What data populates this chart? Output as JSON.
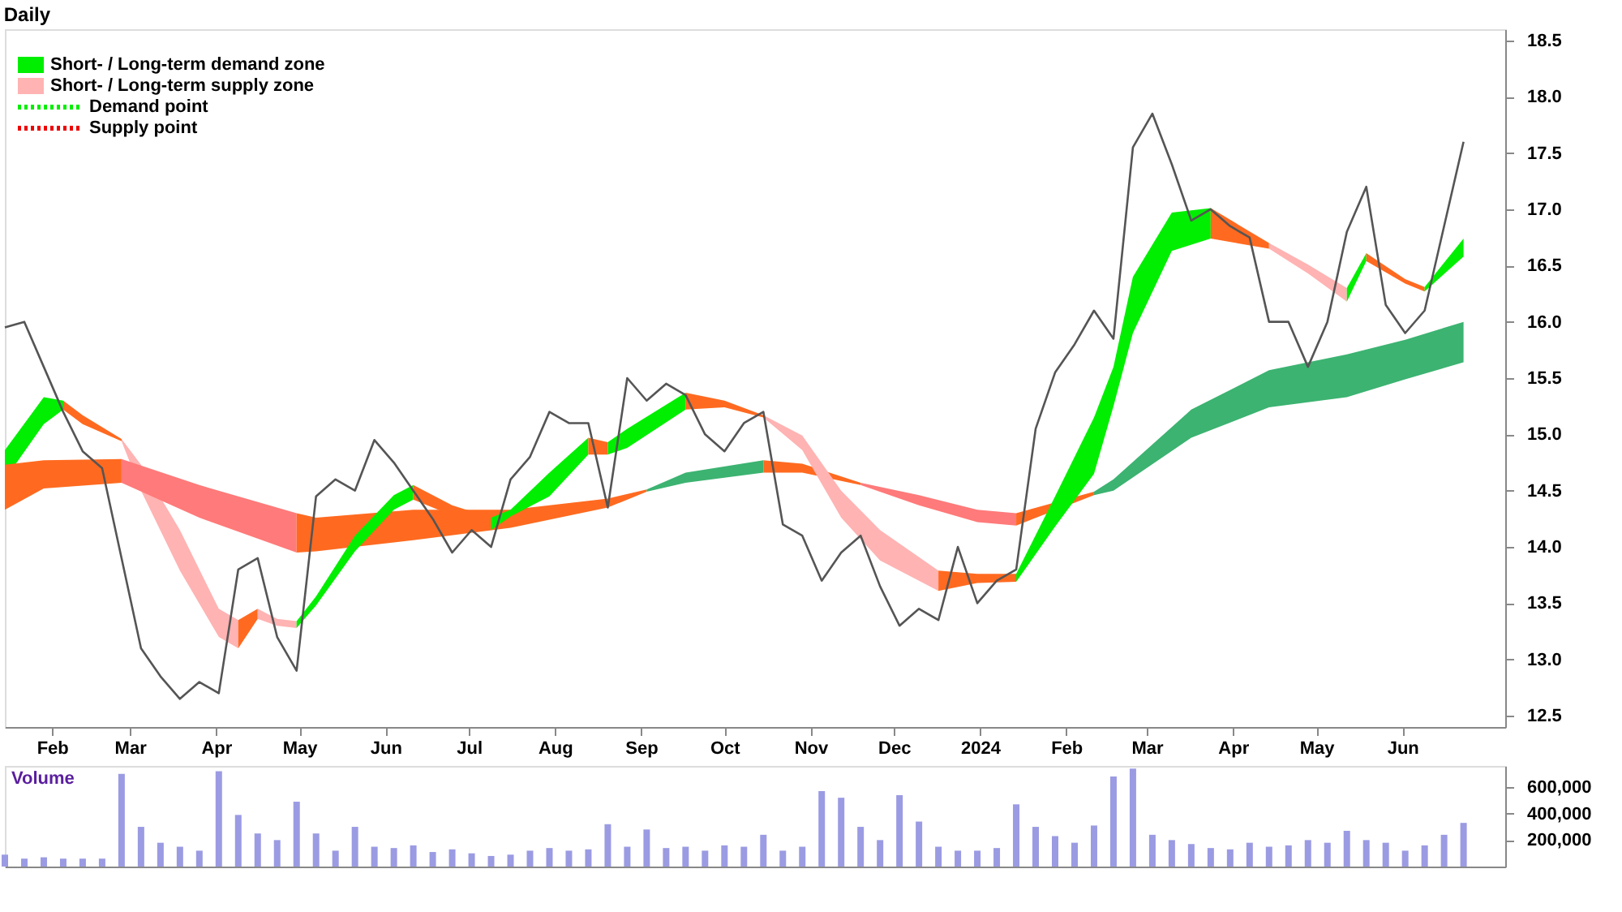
{
  "chart_data": [
    {
      "type": "line",
      "title": "Daily",
      "legend": "top left",
      "grid": false,
      "x": [
        "2023-01-15",
        "2023-01-22",
        "2023-01-29",
        "2023-02-05",
        "2023-02-12",
        "2023-02-19",
        "2023-02-26",
        "2023-03-05",
        "2023-03-12",
        "2023-03-19",
        "2023-03-26",
        "2023-04-02",
        "2023-04-09",
        "2023-04-16",
        "2023-04-23",
        "2023-04-30",
        "2023-05-07",
        "2023-05-14",
        "2023-05-21",
        "2023-05-28",
        "2023-06-04",
        "2023-06-11",
        "2023-06-18",
        "2023-06-25",
        "2023-07-02",
        "2023-07-09",
        "2023-07-16",
        "2023-07-23",
        "2023-07-30",
        "2023-08-06",
        "2023-08-13",
        "2023-08-20",
        "2023-08-27",
        "2023-09-03",
        "2023-09-10",
        "2023-09-17",
        "2023-09-24",
        "2023-10-01",
        "2023-10-08",
        "2023-10-15",
        "2023-10-22",
        "2023-10-29",
        "2023-11-05",
        "2023-11-12",
        "2023-11-19",
        "2023-11-26",
        "2023-12-03",
        "2023-12-10",
        "2023-12-17",
        "2023-12-24",
        "2023-12-31",
        "2024-01-07",
        "2024-01-14",
        "2024-01-21",
        "2024-01-28",
        "2024-02-04",
        "2024-02-11",
        "2024-02-18",
        "2024-02-25",
        "2024-03-03",
        "2024-03-10",
        "2024-03-17",
        "2024-03-24",
        "2024-03-31",
        "2024-04-07",
        "2024-04-14",
        "2024-04-21",
        "2024-04-28",
        "2024-05-05",
        "2024-05-12",
        "2024-05-19",
        "2024-05-26",
        "2024-06-02",
        "2024-06-09",
        "2024-06-16",
        "2024-06-23"
      ],
      "xlim": [
        "2023-01-15",
        "2024-07-08"
      ],
      "xticks": [
        {
          "value": "2023-02-01",
          "label": "Feb"
        },
        {
          "value": "2023-03-01",
          "label": "Mar"
        },
        {
          "value": "2023-04-01",
          "label": "Apr"
        },
        {
          "value": "2023-05-01",
          "label": "May"
        },
        {
          "value": "2023-06-01",
          "label": "Jun"
        },
        {
          "value": "2023-07-01",
          "label": "Jul"
        },
        {
          "value": "2023-08-01",
          "label": "Aug"
        },
        {
          "value": "2023-09-01",
          "label": "Sep"
        },
        {
          "value": "2023-10-01",
          "label": "Oct"
        },
        {
          "value": "2023-11-01",
          "label": "Nov"
        },
        {
          "value": "2023-12-01",
          "label": "Dec"
        },
        {
          "value": "2024-01-01",
          "label": "2024"
        },
        {
          "value": "2024-02-01",
          "label": "Feb"
        },
        {
          "value": "2024-03-01",
          "label": "Mar"
        },
        {
          "value": "2024-04-01",
          "label": "Apr"
        },
        {
          "value": "2024-05-01",
          "label": "May"
        },
        {
          "value": "2024-06-01",
          "label": "Jun"
        }
      ],
      "ylim": [
        12.4,
        18.6
      ],
      "yticks": [
        {
          "value": 12.5,
          "label": "12.5"
        },
        {
          "value": 13,
          "label": "13.0"
        },
        {
          "value": 13.5,
          "label": "13.5"
        },
        {
          "value": 14,
          "label": "14.0"
        },
        {
          "value": 14.5,
          "label": "14.5"
        },
        {
          "value": 15,
          "label": "15.0"
        },
        {
          "value": 15.5,
          "label": "15.5"
        },
        {
          "value": 16,
          "label": "16.0"
        },
        {
          "value": 16.5,
          "label": "16.5"
        },
        {
          "value": 17,
          "label": "17.0"
        },
        {
          "value": 17.5,
          "label": "17.5"
        },
        {
          "value": 18,
          "label": "18.0"
        },
        {
          "value": 18.5,
          "label": "18.5"
        }
      ],
      "series": [
        {
          "type": "line",
          "name": "Short- / Long-term demand zone",
          "color": "#00ee00",
          "x": [
            "2023-01-15",
            "2023-01-29",
            "2023-02-05"
          ],
          "values": [
            null,
            null,
            null
          ],
          "upper": [
            14.86,
            15.33,
            15.3
          ],
          "lower": [
            14.6,
            15.09,
            15.22
          ]
        },
        {
          "type": "line",
          "color": "#ff6a20",
          "x": [
            "2023-01-15",
            "2023-01-29",
            "2023-02-26"
          ],
          "values": [
            null,
            null,
            null
          ],
          "upper": [
            14.73,
            14.77,
            14.78
          ],
          "lower": [
            14.33,
            14.52,
            14.57
          ]
        },
        {
          "type": "line",
          "name": "Short- / Long-term supply zone",
          "color": "#ffb3b3",
          "x": [
            "2023-02-26",
            "2023-03-05",
            "2023-03-19",
            "2023-04-02",
            "2023-04-09"
          ],
          "values": [
            null,
            null,
            null,
            null,
            null
          ],
          "upper": [
            14.96,
            14.73,
            14.15,
            13.45,
            13.35
          ],
          "lower": [
            14.94,
            14.5,
            13.79,
            13.2,
            13.1
          ]
        },
        {
          "type": "line",
          "color": "#ff7a7a",
          "x": [
            "2023-02-26",
            "2023-03-26",
            "2023-04-30"
          ],
          "values": [
            null,
            null,
            null
          ],
          "upper": [
            14.78,
            14.55,
            14.3
          ],
          "lower": [
            14.57,
            14.26,
            13.95
          ]
        },
        {
          "type": "line",
          "color": "#ff6a20",
          "x": [
            "2023-04-30",
            "2023-05-07",
            "2023-06-11",
            "2023-07-16",
            "2023-08-20",
            "2023-09-03"
          ],
          "values": [
            null,
            null,
            null,
            null,
            null,
            null
          ],
          "upper": [
            14.3,
            14.26,
            14.33,
            14.33,
            14.43,
            14.51
          ],
          "lower": [
            13.95,
            13.96,
            14.06,
            14.17,
            14.35,
            14.49
          ]
        },
        {
          "type": "line",
          "color": "#3cb371",
          "x": [
            "2023-09-03",
            "2023-09-17",
            "2023-10-15"
          ],
          "values": [
            null,
            null,
            null
          ],
          "upper": [
            14.51,
            14.66,
            14.77
          ],
          "lower": [
            14.49,
            14.57,
            14.66
          ]
        },
        {
          "type": "line",
          "color": "#ff6a20",
          "x": [
            "2023-10-15",
            "2023-10-29",
            "2023-11-19"
          ],
          "values": [
            null,
            null,
            null
          ],
          "upper": [
            14.77,
            14.74,
            14.57
          ],
          "lower": [
            14.66,
            14.66,
            14.55
          ]
        },
        {
          "type": "line",
          "color": "#ff7a7a",
          "x": [
            "2023-11-19",
            "2023-12-10",
            "2023-12-31",
            "2024-01-14"
          ],
          "values": [
            null,
            null,
            null,
            null
          ],
          "upper": [
            14.57,
            14.46,
            14.33,
            14.3
          ],
          "lower": [
            14.55,
            14.37,
            14.22,
            14.19
          ]
        },
        {
          "type": "line",
          "color": "#ff6a20",
          "x": [
            "2024-01-14",
            "2024-02-11"
          ],
          "values": [
            null,
            null
          ],
          "upper": [
            14.3,
            14.49
          ],
          "lower": [
            14.19,
            14.46
          ]
        },
        {
          "type": "line",
          "color": "#3cb371",
          "x": [
            "2024-02-11",
            "2024-02-18",
            "2024-03-17",
            "2024-04-14",
            "2024-05-12",
            "2024-06-02",
            "2024-06-23"
          ],
          "values": [
            null,
            null,
            null,
            null,
            null,
            null,
            null
          ],
          "upper": [
            14.49,
            14.6,
            15.22,
            15.57,
            15.71,
            15.84,
            16.0
          ],
          "lower": [
            14.46,
            14.5,
            14.97,
            15.24,
            15.33,
            15.49,
            15.64
          ]
        },
        {
          "type": "line",
          "color": "#ff6a20",
          "x": [
            "2023-02-05",
            "2023-02-12",
            "2023-02-26"
          ],
          "values": [
            null,
            null,
            null
          ],
          "upper": [
            15.3,
            15.17,
            14.96
          ],
          "lower": [
            15.22,
            15.09,
            14.94
          ]
        },
        {
          "type": "line",
          "color": "#ff6a20",
          "x": [
            "2023-04-09",
            "2023-04-16"
          ],
          "values": [
            null,
            null
          ],
          "upper": [
            13.35,
            13.45
          ],
          "lower": [
            13.1,
            13.36
          ]
        },
        {
          "type": "line",
          "color": "#ffb3b3",
          "x": [
            "2023-04-16",
            "2023-04-23",
            "2023-04-30"
          ],
          "values": [
            null,
            null,
            null
          ],
          "upper": [
            13.45,
            13.36,
            13.34
          ],
          "lower": [
            13.36,
            13.3,
            13.28
          ]
        },
        {
          "type": "line",
          "color": "#00ee00",
          "x": [
            "2023-04-30",
            "2023-05-07",
            "2023-05-21",
            "2023-06-04",
            "2023-06-11"
          ],
          "values": [
            null,
            null,
            null,
            null,
            null
          ],
          "upper": [
            13.34,
            13.56,
            14.1,
            14.46,
            14.55
          ],
          "lower": [
            13.28,
            13.48,
            13.96,
            14.33,
            14.42
          ]
        },
        {
          "type": "line",
          "color": "#ff6a20",
          "x": [
            "2023-06-11",
            "2023-06-25",
            "2023-07-09"
          ],
          "values": [
            null,
            null,
            null
          ],
          "upper": [
            14.55,
            14.37,
            14.26
          ],
          "lower": [
            14.42,
            14.28,
            14.15
          ]
        },
        {
          "type": "line",
          "color": "#00ee00",
          "x": [
            "2023-07-09",
            "2023-07-16",
            "2023-07-30",
            "2023-08-13"
          ],
          "values": [
            null,
            null,
            null,
            null
          ],
          "upper": [
            14.26,
            14.33,
            14.66,
            14.97
          ],
          "lower": [
            14.15,
            14.27,
            14.45,
            14.82
          ]
        },
        {
          "type": "line",
          "color": "#ff6a20",
          "x": [
            "2023-08-13",
            "2023-08-20"
          ],
          "values": [
            null,
            null
          ],
          "upper": [
            14.97,
            14.93
          ],
          "lower": [
            14.82,
            14.82
          ]
        },
        {
          "type": "line",
          "color": "#00ee00",
          "x": [
            "2023-08-20",
            "2023-08-27",
            "2023-09-17"
          ],
          "values": [
            null,
            null,
            null
          ],
          "upper": [
            14.93,
            15.05,
            15.37
          ],
          "lower": [
            14.82,
            14.88,
            15.22
          ]
        },
        {
          "type": "line",
          "color": "#ff6a20",
          "x": [
            "2023-09-17",
            "2023-10-01",
            "2023-10-15"
          ],
          "values": [
            null,
            null,
            null
          ],
          "upper": [
            15.37,
            15.3,
            15.17
          ],
          "lower": [
            15.22,
            15.24,
            15.15
          ]
        },
        {
          "type": "line",
          "color": "#ffb3b3",
          "x": [
            "2023-10-15",
            "2023-10-29",
            "2023-11-12",
            "2023-11-26",
            "2023-12-17"
          ],
          "values": [
            null,
            null,
            null,
            null,
            null
          ],
          "upper": [
            15.17,
            14.99,
            14.5,
            14.15,
            13.79
          ],
          "lower": [
            15.15,
            14.86,
            14.26,
            13.88,
            13.61
          ]
        },
        {
          "type": "line",
          "color": "#ff6a20",
          "x": [
            "2023-12-17",
            "2023-12-31",
            "2024-01-14"
          ],
          "values": [
            null,
            null,
            null
          ],
          "upper": [
            13.79,
            13.76,
            13.76
          ],
          "lower": [
            13.61,
            13.68,
            13.69
          ]
        },
        {
          "type": "line",
          "color": "#00ee00",
          "x": [
            "2024-01-14",
            "2024-01-28",
            "2024-02-11",
            "2024-02-18",
            "2024-02-25",
            "2024-03-10",
            "2024-03-24"
          ],
          "values": [
            null,
            null,
            null,
            null,
            null,
            null,
            null
          ],
          "upper": [
            13.76,
            14.45,
            15.15,
            15.6,
            16.4,
            16.97,
            17.01
          ],
          "lower": [
            13.69,
            14.18,
            14.65,
            15.25,
            15.9,
            16.63,
            16.74
          ]
        },
        {
          "type": "line",
          "color": "#ff6a20",
          "x": [
            "2024-03-24",
            "2024-04-14"
          ],
          "values": [
            null,
            null
          ],
          "upper": [
            17.01,
            16.7
          ],
          "lower": [
            16.74,
            16.65
          ]
        },
        {
          "type": "line",
          "color": "#ffb3b3",
          "x": [
            "2024-04-14",
            "2024-04-28",
            "2024-05-12"
          ],
          "values": [
            null,
            null,
            null
          ],
          "upper": [
            16.7,
            16.51,
            16.3
          ],
          "lower": [
            16.65,
            16.43,
            16.18
          ]
        },
        {
          "type": "line",
          "color": "#00ee00",
          "x": [
            "2024-05-12",
            "2024-05-19"
          ],
          "values": [
            null,
            null
          ],
          "upper": [
            16.3,
            16.61
          ],
          "lower": [
            16.18,
            16.54
          ]
        },
        {
          "type": "line",
          "color": "#ff6a20",
          "x": [
            "2024-05-19",
            "2024-06-02",
            "2024-06-09"
          ],
          "values": [
            null,
            null,
            null
          ],
          "upper": [
            16.61,
            16.38,
            16.31
          ],
          "lower": [
            16.54,
            16.34,
            16.27
          ]
        },
        {
          "type": "line",
          "color": "#00ee00",
          "x": [
            "2024-06-09",
            "2024-06-23"
          ],
          "values": [
            null,
            null
          ],
          "upper": [
            16.31,
            16.74
          ],
          "lower": [
            16.27,
            16.58
          ]
        },
        {
          "type": "line",
          "color": "#555555",
          "values": [
            15.95,
            16.0,
            15.6,
            15.2,
            14.85,
            14.7,
            13.9,
            13.1,
            12.85,
            12.65,
            12.8,
            12.7,
            13.8,
            13.9,
            13.2,
            12.9,
            14.45,
            14.6,
            14.5,
            14.95,
            14.75,
            14.5,
            14.25,
            13.95,
            14.15,
            14.0,
            14.6,
            14.8,
            15.2,
            15.1,
            15.1,
            14.35,
            15.5,
            15.3,
            15.45,
            15.35,
            15.0,
            14.85,
            15.1,
            15.2,
            14.2,
            14.1,
            13.7,
            13.95,
            14.1,
            13.65,
            13.3,
            13.45,
            13.35,
            14.0,
            13.5,
            13.7,
            13.8,
            15.05,
            15.55,
            15.8,
            16.1,
            15.85,
            17.55,
            17.85,
            17.4,
            16.9,
            17.0,
            16.85,
            16.75,
            16.0,
            16.0,
            15.6,
            16.0,
            16.8,
            17.2,
            16.15,
            15.9,
            16.1,
            16.85,
            17.6
          ]
        },
        {
          "type": "line",
          "name": "Demand point",
          "color": "#00ee00",
          "line_style": "dotted",
          "values": [
            null,
            null,
            null,
            null,
            null,
            null,
            null,
            null,
            null,
            null,
            null,
            null,
            null,
            null,
            null,
            null,
            null,
            null,
            null,
            null,
            null,
            null,
            null,
            null,
            null,
            null,
            null,
            null,
            null,
            null,
            null,
            null,
            null,
            null,
            null,
            null,
            null,
            null,
            null,
            null,
            null,
            null,
            null,
            null,
            null,
            null,
            null,
            null,
            null,
            null,
            null,
            null,
            null,
            null,
            null,
            null,
            null,
            null,
            null,
            null,
            null,
            null,
            null,
            null,
            null,
            null,
            null,
            null,
            null,
            null,
            null,
            null,
            null,
            null,
            null,
            null
          ]
        },
        {
          "type": "line",
          "name": "Supply point",
          "color": "#ee0000",
          "line_style": "dotted",
          "values": [
            null,
            null,
            null,
            null,
            null,
            null,
            null,
            null,
            null,
            null,
            null,
            null,
            null,
            null,
            null,
            null,
            null,
            null,
            null,
            null,
            null,
            null,
            null,
            null,
            null,
            null,
            null,
            null,
            null,
            null,
            null,
            null,
            null,
            null,
            null,
            null,
            null,
            null,
            null,
            null,
            null,
            null,
            null,
            null,
            null,
            null,
            null,
            null,
            null,
            null,
            null,
            null,
            null,
            null,
            null,
            null,
            null,
            null,
            null,
            null,
            null,
            null,
            null,
            null,
            null,
            null,
            null,
            null,
            null,
            null,
            null,
            null,
            null,
            null,
            null,
            null
          ]
        }
      ]
    },
    {
      "type": "bar",
      "ylabel": "Volume",
      "color": "#9b9be3",
      "tick_labels": "y",
      "grid": false,
      "x": [
        "2023-01-15",
        "2023-01-22",
        "2023-01-29",
        "2023-02-05",
        "2023-02-12",
        "2023-02-19",
        "2023-02-26",
        "2023-03-05",
        "2023-03-12",
        "2023-03-19",
        "2023-03-26",
        "2023-04-02",
        "2023-04-09",
        "2023-04-16",
        "2023-04-23",
        "2023-04-30",
        "2023-05-07",
        "2023-05-14",
        "2023-05-21",
        "2023-05-28",
        "2023-06-04",
        "2023-06-11",
        "2023-06-18",
        "2023-06-25",
        "2023-07-02",
        "2023-07-09",
        "2023-07-16",
        "2023-07-23",
        "2023-07-30",
        "2023-08-06",
        "2023-08-13",
        "2023-08-20",
        "2023-08-27",
        "2023-09-03",
        "2023-09-10",
        "2023-09-17",
        "2023-09-24",
        "2023-10-01",
        "2023-10-08",
        "2023-10-15",
        "2023-10-22",
        "2023-10-29",
        "2023-11-05",
        "2023-11-12",
        "2023-11-19",
        "2023-11-26",
        "2023-12-03",
        "2023-12-10",
        "2023-12-17",
        "2023-12-24",
        "2023-12-31",
        "2024-01-07",
        "2024-01-14",
        "2024-01-21",
        "2024-01-28",
        "2024-02-04",
        "2024-02-11",
        "2024-02-18",
        "2024-02-25",
        "2024-03-03",
        "2024-03-10",
        "2024-03-17",
        "2024-03-24",
        "2024-03-31",
        "2024-04-07",
        "2024-04-14",
        "2024-04-21",
        "2024-04-28",
        "2024-05-05",
        "2024-05-12",
        "2024-05-19",
        "2024-05-26",
        "2024-06-02",
        "2024-06-09",
        "2024-06-16",
        "2024-06-23"
      ],
      "xlim": [
        "2023-01-15",
        "2024-07-08"
      ],
      "values": [
        90000,
        60000,
        70000,
        60000,
        60000,
        60000,
        700000,
        300000,
        180000,
        150000,
        120000,
        720000,
        390000,
        250000,
        200000,
        490000,
        250000,
        120000,
        300000,
        150000,
        140000,
        160000,
        110000,
        130000,
        100000,
        80000,
        90000,
        120000,
        140000,
        120000,
        130000,
        320000,
        150000,
        280000,
        140000,
        150000,
        120000,
        160000,
        150000,
        240000,
        120000,
        150000,
        570000,
        520000,
        300000,
        200000,
        540000,
        340000,
        150000,
        120000,
        120000,
        140000,
        470000,
        300000,
        230000,
        180000,
        310000,
        680000,
        740000,
        240000,
        200000,
        170000,
        140000,
        130000,
        180000,
        150000,
        160000,
        200000,
        180000,
        270000,
        200000,
        180000,
        120000,
        160000,
        240000,
        330000
      ],
      "ylim": [
        0,
        760000
      ],
      "yticks": [
        {
          "value": 200000,
          "label": "200,000"
        },
        {
          "value": 400000,
          "label": "400,000"
        },
        {
          "value": 600000,
          "label": "600,000"
        }
      ]
    }
  ]
}
